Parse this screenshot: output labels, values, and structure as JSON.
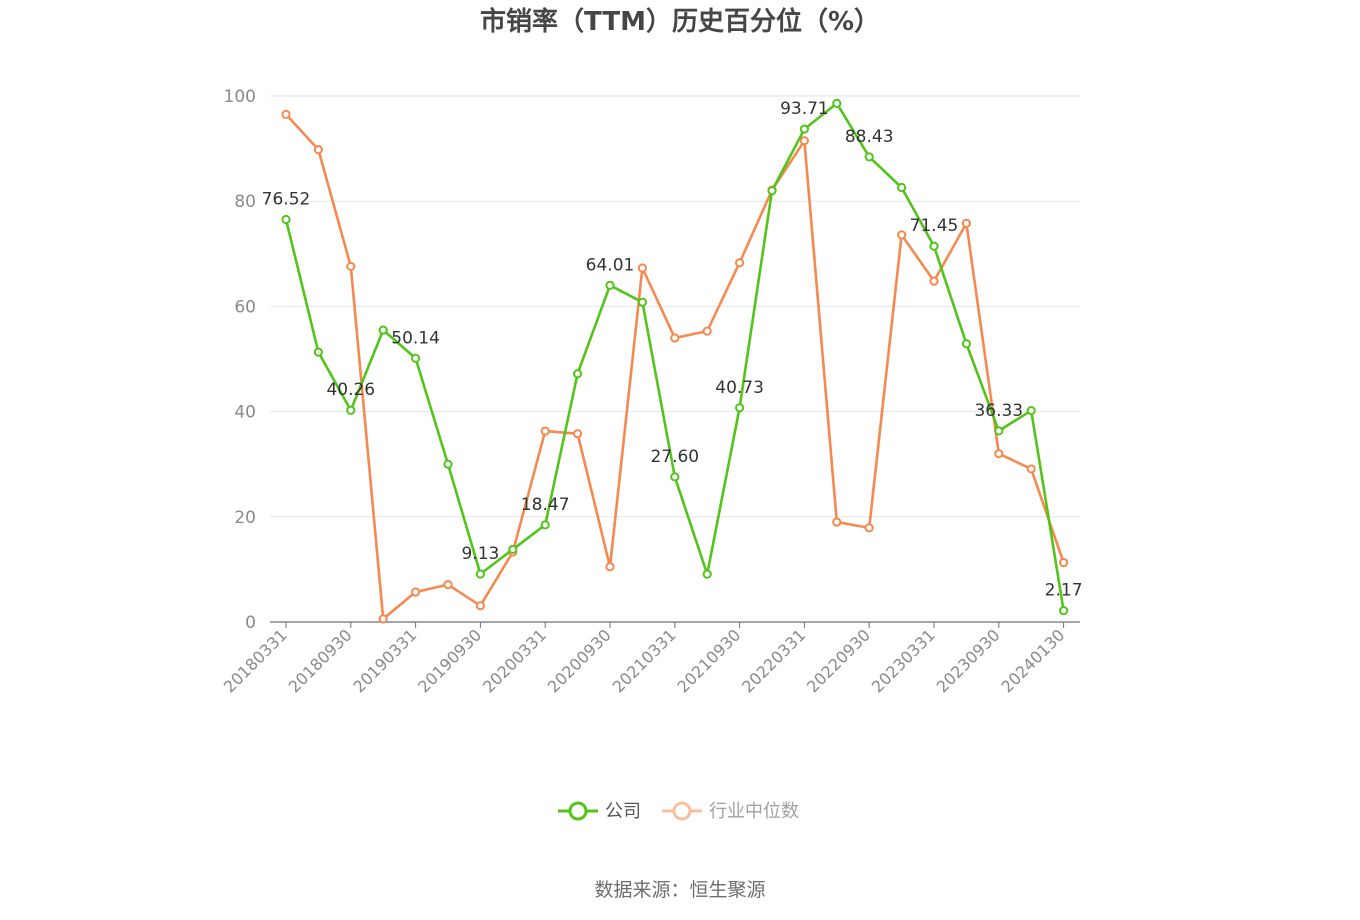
{
  "chart_data": {
    "type": "line",
    "title": "市销率（TTM）历史百分位（%）",
    "source": "数据来源：恒生聚源",
    "ylim": [
      0,
      100
    ],
    "yticks": [
      0,
      20,
      40,
      60,
      80,
      100
    ],
    "grid": true,
    "legend_position": "bottom",
    "x": [
      "20180331",
      "20180630",
      "20180930",
      "20181231",
      "20190331",
      "20190630",
      "20190930",
      "20191231",
      "20200331",
      "20200630",
      "20200930",
      "20201231",
      "20210331",
      "20210630",
      "20210930",
      "20211231",
      "20220331",
      "20220630",
      "20220930",
      "20221231",
      "20230331",
      "20230630",
      "20230930",
      "20231231",
      "20240130"
    ],
    "xtick_labels": [
      "20180331",
      "20180930",
      "20190331",
      "20190930",
      "20200331",
      "20200930",
      "20210331",
      "20210930",
      "20220331",
      "20220930",
      "20230331",
      "20230930",
      "20240130"
    ],
    "series": [
      {
        "name": "公司",
        "color": "#52c41a",
        "values": [
          76.52,
          51.3,
          40.26,
          55.5,
          50.14,
          30.0,
          9.13,
          13.8,
          18.47,
          47.2,
          64.01,
          60.8,
          27.6,
          9.1,
          40.73,
          82.0,
          93.71,
          98.6,
          88.43,
          82.6,
          71.45,
          52.9,
          36.33,
          40.2,
          2.17
        ],
        "labels": [
          "76.52",
          "",
          "40.26",
          "",
          "50.14",
          "",
          "9.13",
          "",
          "18.47",
          "",
          "64.01",
          "",
          "27.60",
          "",
          "40.73",
          "",
          "93.71",
          "",
          "88.43",
          "",
          "71.45",
          "",
          "36.33",
          "",
          "2.17"
        ]
      },
      {
        "name": "行业中位数",
        "color": "#f5894f",
        "values": [
          96.5,
          89.8,
          67.6,
          0.6,
          5.7,
          7.1,
          3.1,
          13.3,
          36.3,
          35.8,
          10.5,
          67.3,
          54.0,
          55.3,
          68.3,
          82.1,
          91.5,
          19.0,
          17.9,
          73.6,
          64.8,
          75.8,
          32.0,
          29.1,
          11.3
        ]
      }
    ]
  }
}
